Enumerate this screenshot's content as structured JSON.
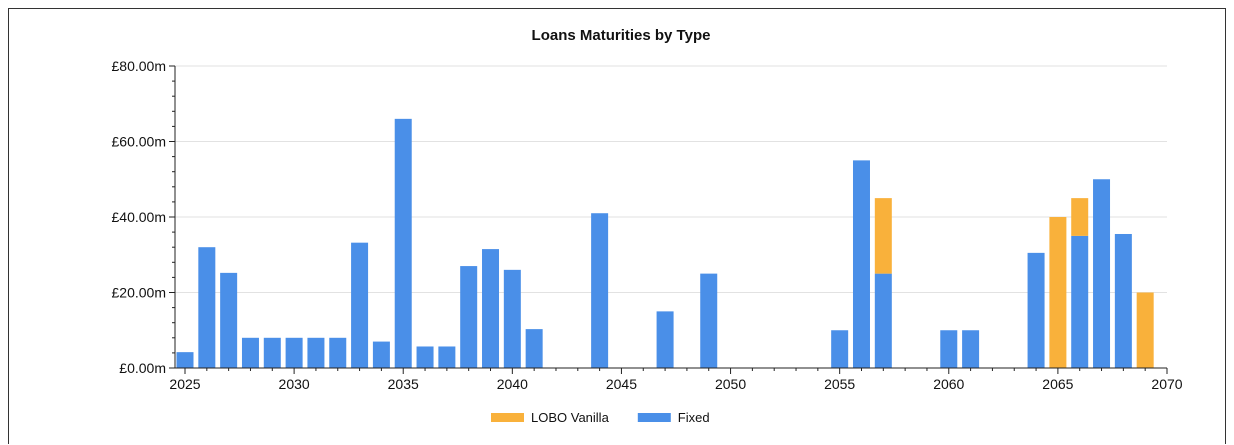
{
  "chart_data": {
    "type": "bar",
    "stacked": true,
    "title": "Loans Maturities by Type",
    "xlabel": "",
    "ylabel": "",
    "xlim": [
      2025,
      2070
    ],
    "ylim": [
      0,
      80
    ],
    "x_ticks": [
      "2025",
      "2030",
      "2035",
      "2040",
      "2045",
      "2050",
      "2055",
      "2060",
      "2065",
      "2070"
    ],
    "x_tick_values": [
      2025,
      2030,
      2035,
      2040,
      2045,
      2050,
      2055,
      2060,
      2065,
      2070
    ],
    "y_ticks": [
      "£0.00m",
      "£20.00m",
      "£40.00m",
      "£60.00m",
      "£80.00m"
    ],
    "y_tick_values": [
      0,
      20,
      40,
      60,
      80
    ],
    "grid": "horizontal",
    "legend_position": "bottom-center",
    "series": [
      {
        "name": "Fixed",
        "color": "#4a8fe8",
        "points": [
          {
            "x": 2025,
            "y": 4.2
          },
          {
            "x": 2026,
            "y": 32
          },
          {
            "x": 2027,
            "y": 25.2
          },
          {
            "x": 2028,
            "y": 8
          },
          {
            "x": 2029,
            "y": 8
          },
          {
            "x": 2030,
            "y": 8
          },
          {
            "x": 2031,
            "y": 8
          },
          {
            "x": 2032,
            "y": 8
          },
          {
            "x": 2033,
            "y": 33.2
          },
          {
            "x": 2034,
            "y": 7
          },
          {
            "x": 2035,
            "y": 66
          },
          {
            "x": 2036,
            "y": 5.7
          },
          {
            "x": 2037,
            "y": 5.7
          },
          {
            "x": 2038,
            "y": 27
          },
          {
            "x": 2039,
            "y": 31.5
          },
          {
            "x": 2040,
            "y": 26
          },
          {
            "x": 2041,
            "y": 10.3
          },
          {
            "x": 2044,
            "y": 41
          },
          {
            "x": 2047,
            "y": 15
          },
          {
            "x": 2049,
            "y": 25
          },
          {
            "x": 2055,
            "y": 10
          },
          {
            "x": 2056,
            "y": 55
          },
          {
            "x": 2057,
            "y": 25
          },
          {
            "x": 2060,
            "y": 10
          },
          {
            "x": 2061,
            "y": 10
          },
          {
            "x": 2064,
            "y": 30.5
          },
          {
            "x": 2066,
            "y": 35
          },
          {
            "x": 2067,
            "y": 50
          },
          {
            "x": 2068,
            "y": 35.5
          }
        ]
      },
      {
        "name": "LOBO Vanilla",
        "color": "#f9b13b",
        "points": [
          {
            "x": 2057,
            "y": 20
          },
          {
            "x": 2065,
            "y": 40
          },
          {
            "x": 2066,
            "y": 10
          },
          {
            "x": 2069,
            "y": 20
          }
        ]
      }
    ],
    "legend": [
      {
        "name": "LOBO Vanilla",
        "color": "#f9b13b"
      },
      {
        "name": "Fixed",
        "color": "#4a8fe8"
      }
    ]
  }
}
